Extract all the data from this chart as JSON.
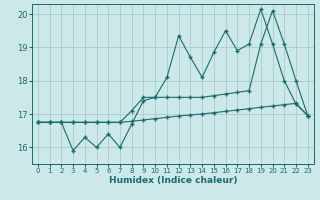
{
  "xlabel": "Humidex (Indice chaleur)",
  "ylabel": "",
  "bg_color": "#cce8e8",
  "grid_color": "#aacccc",
  "line_color": "#1a6b6b",
  "xlim": [
    -0.5,
    23.5
  ],
  "ylim": [
    15.5,
    20.3
  ],
  "xticks": [
    0,
    1,
    2,
    3,
    4,
    5,
    6,
    7,
    8,
    9,
    10,
    11,
    12,
    13,
    14,
    15,
    16,
    17,
    18,
    19,
    20,
    21,
    22,
    23
  ],
  "yticks": [
    16,
    17,
    18,
    19,
    20
  ],
  "line1_x": [
    0,
    1,
    2,
    3,
    4,
    5,
    6,
    7,
    8,
    9,
    10,
    11,
    12,
    13,
    14,
    15,
    16,
    17,
    18,
    19,
    20,
    21,
    22,
    23
  ],
  "line1_y": [
    16.75,
    16.75,
    16.75,
    16.75,
    16.75,
    16.75,
    16.75,
    16.75,
    16.78,
    16.82,
    16.86,
    16.9,
    16.94,
    16.97,
    17.0,
    17.04,
    17.08,
    17.12,
    17.16,
    17.2,
    17.24,
    17.28,
    17.32,
    16.95
  ],
  "line2_x": [
    0,
    1,
    2,
    3,
    4,
    5,
    6,
    7,
    8,
    9,
    10,
    11,
    12,
    13,
    14,
    15,
    16,
    17,
    18,
    19,
    20,
    21,
    22,
    23
  ],
  "line2_y": [
    16.75,
    16.75,
    16.75,
    16.75,
    16.75,
    16.75,
    16.75,
    16.75,
    17.1,
    17.5,
    17.5,
    17.5,
    17.5,
    17.5,
    17.5,
    17.55,
    17.6,
    17.65,
    17.7,
    19.1,
    20.1,
    19.1,
    18.0,
    16.95
  ],
  "line3_x": [
    0,
    1,
    2,
    3,
    4,
    5,
    6,
    7,
    8,
    9,
    10,
    11,
    12,
    13,
    14,
    15,
    16,
    17,
    18,
    19,
    20,
    21,
    22,
    23
  ],
  "line3_y": [
    16.75,
    16.75,
    16.75,
    15.9,
    16.3,
    16.0,
    16.4,
    16.0,
    16.7,
    17.4,
    17.5,
    18.1,
    19.35,
    18.7,
    18.1,
    18.85,
    19.5,
    18.9,
    19.1,
    20.15,
    19.1,
    18.0,
    17.3,
    16.95
  ],
  "marker": "+"
}
